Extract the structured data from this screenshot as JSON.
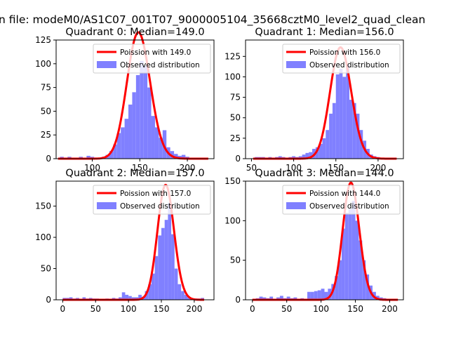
{
  "figure": {
    "suptitle": "n file: modeM0/AS1C07_001T07_9000005104_35668cztM0_level2_quad_clean"
  },
  "colors": {
    "poisson": "#ff0000",
    "observed": "#8080ff",
    "axis": "#000000",
    "background": "#ffffff"
  },
  "chart_data": [
    {
      "type": "bar",
      "title": "Quadrant 0: Median=149.0",
      "median": 149.0,
      "xlim": [
        62,
        228
      ],
      "ylim": [
        0,
        125
      ],
      "xticks": [
        100,
        150,
        200
      ],
      "yticks": [
        0,
        25,
        50,
        75,
        100,
        125
      ],
      "bin_width": 4,
      "bins": [
        [
          66,
          2
        ],
        [
          70,
          1
        ],
        [
          74,
          2
        ],
        [
          78,
          0
        ],
        [
          82,
          1
        ],
        [
          86,
          2
        ],
        [
          90,
          1
        ],
        [
          94,
          3
        ],
        [
          98,
          2
        ],
        [
          102,
          0
        ],
        [
          106,
          1
        ],
        [
          110,
          2
        ],
        [
          114,
          4
        ],
        [
          118,
          8
        ],
        [
          122,
          15
        ],
        [
          126,
          27
        ],
        [
          130,
          33
        ],
        [
          134,
          42
        ],
        [
          138,
          57
        ],
        [
          142,
          70
        ],
        [
          146,
          88
        ],
        [
          150,
          103
        ],
        [
          154,
          98
        ],
        [
          158,
          75
        ],
        [
          162,
          45
        ],
        [
          166,
          33
        ],
        [
          170,
          22
        ],
        [
          174,
          30
        ],
        [
          178,
          12
        ],
        [
          182,
          8
        ],
        [
          186,
          5
        ],
        [
          190,
          3
        ],
        [
          194,
          4
        ],
        [
          198,
          2
        ],
        [
          202,
          1
        ],
        [
          206,
          0
        ],
        [
          210,
          0
        ],
        [
          214,
          1
        ]
      ],
      "legend": [
        "Poission with 149.0",
        "Observed distribution"
      ],
      "poisson_label": "Poission with 149.0",
      "observed_label": "Observed distribution",
      "peak_scale": 14.5,
      "curve_range": [
        64,
        222
      ]
    },
    {
      "type": "bar",
      "title": "Quadrant 1: Median=156.0",
      "median": 156.0,
      "xlim": [
        43,
        230
      ],
      "ylim": [
        0,
        145
      ],
      "xticks": [
        50,
        100,
        150,
        200
      ],
      "yticks": [
        0,
        25,
        50,
        75,
        100,
        125
      ],
      "bin_width": 4,
      "bins": [
        [
          54,
          2
        ],
        [
          58,
          2
        ],
        [
          62,
          2
        ],
        [
          66,
          1
        ],
        [
          70,
          2
        ],
        [
          74,
          1
        ],
        [
          78,
          2
        ],
        [
          82,
          3
        ],
        [
          86,
          2
        ],
        [
          90,
          1
        ],
        [
          94,
          2
        ],
        [
          98,
          3
        ],
        [
          102,
          2
        ],
        [
          106,
          3
        ],
        [
          110,
          5
        ],
        [
          114,
          7
        ],
        [
          118,
          8
        ],
        [
          122,
          12
        ],
        [
          126,
          14
        ],
        [
          130,
          18
        ],
        [
          134,
          25
        ],
        [
          138,
          35
        ],
        [
          142,
          55
        ],
        [
          146,
          68
        ],
        [
          150,
          103
        ],
        [
          154,
          110
        ],
        [
          158,
          100
        ],
        [
          162,
          115
        ],
        [
          166,
          72
        ],
        [
          170,
          68
        ],
        [
          174,
          55
        ],
        [
          178,
          35
        ],
        [
          182,
          22
        ],
        [
          186,
          12
        ],
        [
          190,
          5
        ],
        [
          194,
          3
        ],
        [
          198,
          2
        ],
        [
          202,
          1
        ],
        [
          206,
          1
        ],
        [
          210,
          1
        ]
      ],
      "legend": [
        "Poission with 156.0",
        "Observed distribution"
      ],
      "poisson_label": "Poission with 156.0",
      "observed_label": "Observed distribution",
      "peak_scale": 17.0,
      "curve_range": [
        52,
        222
      ]
    },
    {
      "type": "bar",
      "title": "Quadrant 2: Median=157.0",
      "median": 157.0,
      "xlim": [
        -10,
        230
      ],
      "ylim": [
        0,
        190
      ],
      "xticks": [
        0,
        50,
        100,
        150,
        200
      ],
      "yticks": [
        0,
        50,
        100,
        150
      ],
      "bin_width": 5,
      "bins": [
        [
          0,
          3
        ],
        [
          5,
          3
        ],
        [
          10,
          4
        ],
        [
          15,
          2
        ],
        [
          20,
          3
        ],
        [
          25,
          1
        ],
        [
          30,
          4
        ],
        [
          35,
          2
        ],
        [
          40,
          3
        ],
        [
          45,
          2
        ],
        [
          50,
          2
        ],
        [
          55,
          1
        ],
        [
          60,
          1
        ],
        [
          65,
          2
        ],
        [
          70,
          1
        ],
        [
          75,
          3
        ],
        [
          80,
          2
        ],
        [
          85,
          4
        ],
        [
          90,
          12
        ],
        [
          95,
          8
        ],
        [
          100,
          6
        ],
        [
          105,
          4
        ],
        [
          110,
          4
        ],
        [
          115,
          8
        ],
        [
          120,
          5
        ],
        [
          125,
          14
        ],
        [
          130,
          25
        ],
        [
          135,
          42
        ],
        [
          140,
          70
        ],
        [
          145,
          103
        ],
        [
          150,
          115
        ],
        [
          155,
          128
        ],
        [
          160,
          155
        ],
        [
          165,
          105
        ],
        [
          170,
          50
        ],
        [
          175,
          25
        ],
        [
          180,
          14
        ],
        [
          185,
          8
        ],
        [
          190,
          3
        ],
        [
          195,
          2
        ],
        [
          200,
          2
        ],
        [
          205,
          2
        ],
        [
          210,
          3
        ]
      ],
      "legend": [
        "Poission with 157.0",
        "Observed distribution"
      ],
      "poisson_label": "Poission with 157.0",
      "observed_label": "Observed distribution",
      "peak_scale": 24.0,
      "curve_range": [
        0,
        215
      ]
    },
    {
      "type": "bar",
      "title": "Quadrant 3: Median=144.0",
      "median": 144.0,
      "xlim": [
        -10,
        220
      ],
      "ylim": [
        0,
        150
      ],
      "xticks": [
        0,
        50,
        100,
        150,
        200
      ],
      "yticks": [
        0,
        50,
        100,
        150
      ],
      "bin_width": 5,
      "bins": [
        [
          5,
          2
        ],
        [
          10,
          4
        ],
        [
          15,
          3
        ],
        [
          20,
          2
        ],
        [
          25,
          4
        ],
        [
          30,
          1
        ],
        [
          35,
          3
        ],
        [
          40,
          5
        ],
        [
          45,
          2
        ],
        [
          50,
          4
        ],
        [
          55,
          2
        ],
        [
          60,
          3
        ],
        [
          65,
          1
        ],
        [
          70,
          2
        ],
        [
          75,
          1
        ],
        [
          80,
          10
        ],
        [
          85,
          10
        ],
        [
          90,
          11
        ],
        [
          95,
          12
        ],
        [
          100,
          14
        ],
        [
          105,
          10
        ],
        [
          110,
          14
        ],
        [
          115,
          20
        ],
        [
          120,
          30
        ],
        [
          125,
          50
        ],
        [
          130,
          90
        ],
        [
          135,
          110
        ],
        [
          140,
          115
        ],
        [
          145,
          125
        ],
        [
          150,
          100
        ],
        [
          155,
          75
        ],
        [
          160,
          50
        ],
        [
          165,
          32
        ],
        [
          170,
          18
        ],
        [
          175,
          10
        ],
        [
          180,
          5
        ],
        [
          185,
          3
        ],
        [
          190,
          2
        ],
        [
          195,
          1
        ],
        [
          200,
          1
        ]
      ],
      "legend": [
        "Poission with 144.0",
        "Observed distribution"
      ],
      "poisson_label": "Poission with 144.0",
      "observed_label": "Observed distribution",
      "peak_scale": 18.0,
      "curve_range": [
        0,
        212
      ]
    }
  ]
}
